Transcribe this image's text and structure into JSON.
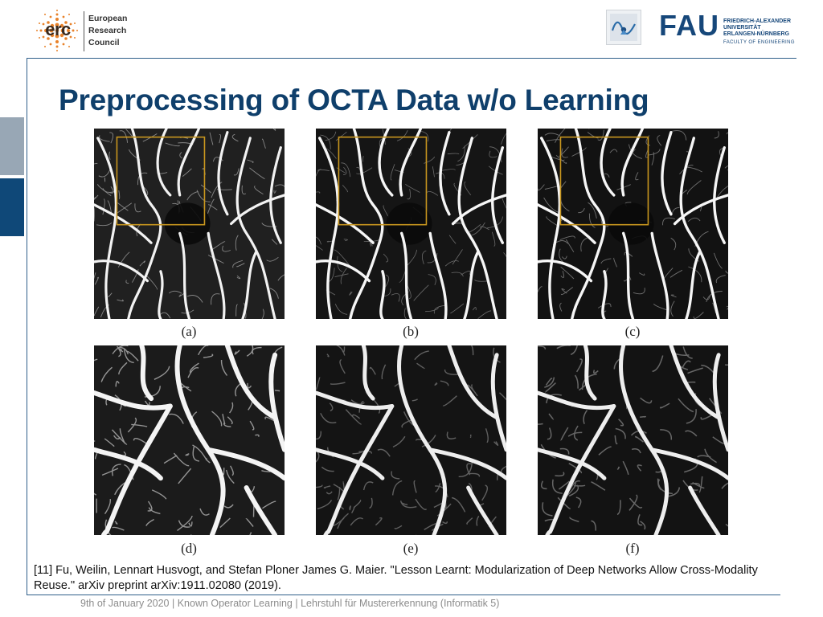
{
  "header": {
    "erc": {
      "abbrev": "erc",
      "name_lines": [
        "European",
        "Research",
        "Council"
      ],
      "brand_color": "#e8822a"
    },
    "fau": {
      "mark": "FAU",
      "name_lines": [
        "FRIEDRICH-ALEXANDER",
        "UNIVERSITÄT",
        "ERLANGEN-NÜRNBERG"
      ],
      "faculty": "FACULTY OF ENGINEERING",
      "brand_color": "#16477a"
    },
    "lab_logo_icon": "pattern-recognition-lab-icon"
  },
  "slide": {
    "title": "Preprocessing of OCTA Data w/o Learning",
    "title_color": "#0f3f6b"
  },
  "figure": {
    "panels": [
      {
        "caption": "(a)",
        "highlight_box": true
      },
      {
        "caption": "(b)",
        "highlight_box": true
      },
      {
        "caption": "(c)",
        "highlight_box": true
      },
      {
        "caption": "(d)",
        "highlight_box": false
      },
      {
        "caption": "(e)",
        "highlight_box": false
      },
      {
        "caption": "(f)",
        "highlight_box": false
      }
    ],
    "highlight_color": "#c8961e"
  },
  "reference": "[11] Fu, Weilin, Lennart Husvogt, and Stefan Ploner James G. Maier. \"Lesson Learnt: Modularization of Deep Networks Allow Cross-Modality Reuse.\" arXiv preprint arXiv:1911.02080 (2019).",
  "footer": {
    "date": "9th of January 2020",
    "sep1": "|",
    "talk": "Known Operator Learning",
    "sep2": "|",
    "institute": "Lehrstuhl für Mustererkennung (Informatik 5)"
  }
}
